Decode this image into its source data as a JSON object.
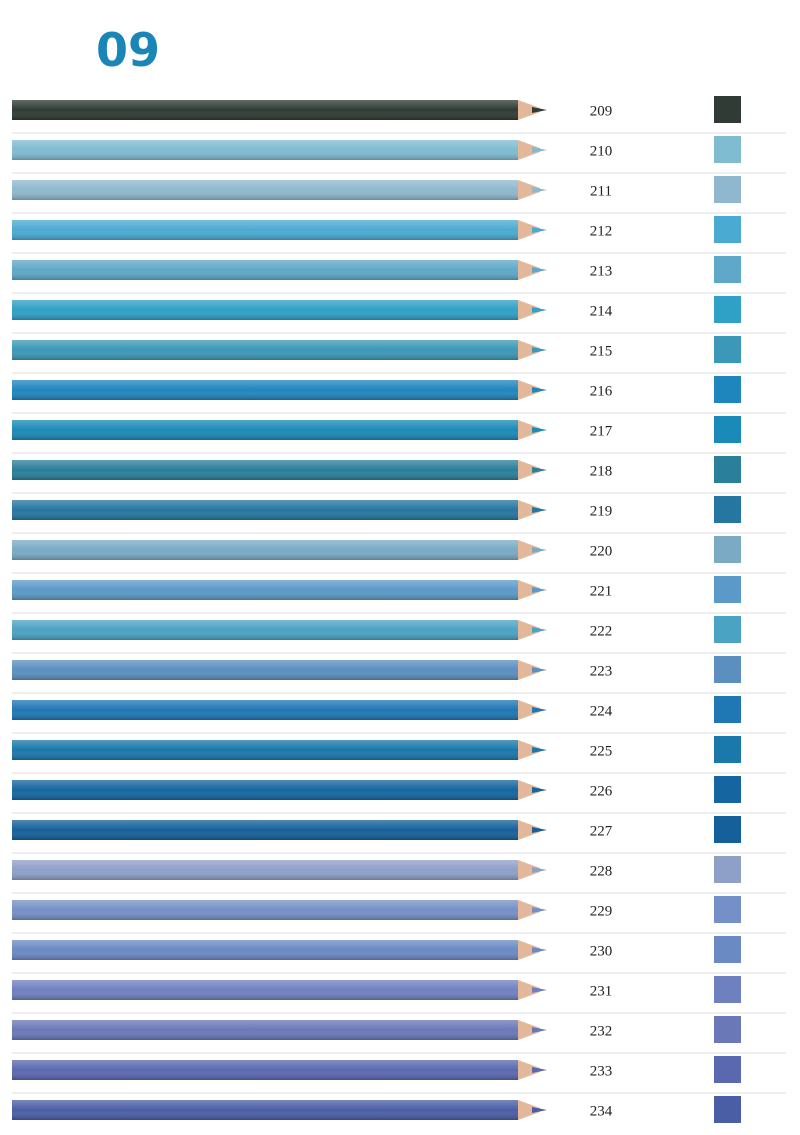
{
  "header": {
    "title": "09"
  },
  "items": [
    {
      "number": 209,
      "color": "#2f3b34"
    },
    {
      "number": 210,
      "color": "#7fbcd2"
    },
    {
      "number": 211,
      "color": "#8fb8cf"
    },
    {
      "number": 212,
      "color": "#4aaad2"
    },
    {
      "number": 213,
      "color": "#5fa8c9"
    },
    {
      "number": 214,
      "color": "#2fa0c6"
    },
    {
      "number": 215,
      "color": "#3b98b8"
    },
    {
      "number": 216,
      "color": "#1f86bd"
    },
    {
      "number": 217,
      "color": "#1a8ab8"
    },
    {
      "number": 218,
      "color": "#2a7f9a"
    },
    {
      "number": 219,
      "color": "#2576a0"
    },
    {
      "number": 220,
      "color": "#7aaac4"
    },
    {
      "number": 221,
      "color": "#5b9ac8"
    },
    {
      "number": 222,
      "color": "#4ba3c4"
    },
    {
      "number": 223,
      "color": "#5a8fc0"
    },
    {
      "number": 224,
      "color": "#1f77b4"
    },
    {
      "number": 225,
      "color": "#1a78aa"
    },
    {
      "number": 226,
      "color": "#1566a0"
    },
    {
      "number": 227,
      "color": "#15609a"
    },
    {
      "number": 228,
      "color": "#8ea0c8"
    },
    {
      "number": 229,
      "color": "#7590c8"
    },
    {
      "number": 230,
      "color": "#6a8ac4"
    },
    {
      "number": 231,
      "color": "#6f80c0"
    },
    {
      "number": 232,
      "color": "#6a78b8"
    },
    {
      "number": 233,
      "color": "#5a68b0"
    },
    {
      "number": 234,
      "color": "#4a5ea6"
    }
  ]
}
